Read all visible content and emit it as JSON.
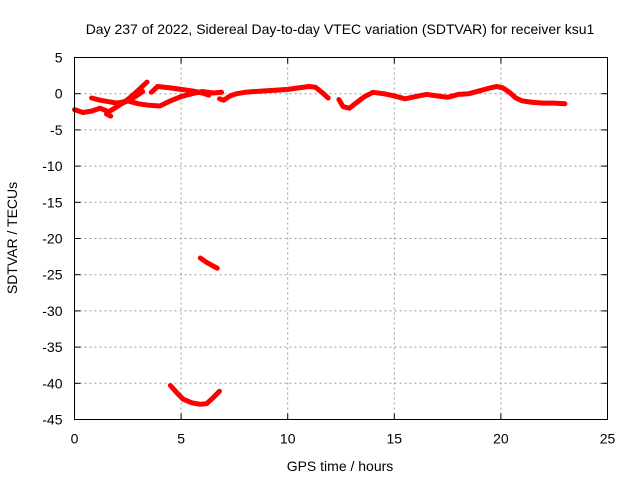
{
  "chart_data": {
    "type": "scatter",
    "title": "Day 237 of 2022, Sidereal Day-to-day VTEC variation (SDTVAR) for receiver ksu1",
    "xlabel": "GPS time / hours",
    "ylabel": "SDTVAR / TECUs",
    "xlim": [
      0,
      25
    ],
    "ylim": [
      -45,
      5
    ],
    "x_ticks": [
      "0",
      "5",
      "10",
      "15",
      "20",
      "25"
    ],
    "y_ticks": [
      "5",
      "0",
      "-5",
      "-10",
      "-15",
      "-20",
      "-25",
      "-30",
      "-35",
      "-40",
      "-45"
    ],
    "x_tick_values": [
      0,
      5,
      10,
      15,
      20,
      25
    ],
    "y_tick_values": [
      5,
      0,
      -5,
      -10,
      -15,
      -20,
      -25,
      -30,
      -35,
      -40,
      -45
    ],
    "grid": true,
    "series_color": "#ff0000",
    "series": [
      {
        "name": "SDTVAR",
        "segments": [
          [
            [
              0,
              -2.2
            ],
            [
              0.4,
              -2.6
            ],
            [
              0.8,
              -2.4
            ],
            [
              1.2,
              -2.0
            ],
            [
              1.6,
              -2.5
            ],
            [
              2.0,
              -1.8
            ],
            [
              2.5,
              -0.8
            ],
            [
              3.0,
              0.5
            ],
            [
              3.4,
              1.6
            ]
          ],
          [
            [
              0.8,
              -0.6
            ],
            [
              1.2,
              -0.9
            ],
            [
              1.6,
              -1.1
            ],
            [
              2.0,
              -1.3
            ],
            [
              2.5,
              -1.0
            ],
            [
              3.0,
              -1.4
            ],
            [
              3.5,
              -1.6
            ],
            [
              4.0,
              -1.7
            ],
            [
              4.5,
              -1.0
            ],
            [
              5.0,
              -0.4
            ],
            [
              5.5,
              0.0
            ],
            [
              6.0,
              0.3
            ],
            [
              6.5,
              0.1
            ],
            [
              6.9,
              0.2
            ]
          ],
          [
            [
              1.5,
              -2.8
            ],
            [
              1.7,
              -3.1
            ]
          ],
          [
            [
              2.1,
              -1.5
            ],
            [
              2.4,
              -1.1
            ],
            [
              2.8,
              -0.5
            ],
            [
              3.2,
              0.3
            ]
          ],
          [
            [
              3.6,
              0.2
            ],
            [
              3.9,
              1.0
            ],
            [
              4.5,
              0.8
            ],
            [
              5.0,
              0.6
            ],
            [
              5.5,
              0.4
            ],
            [
              6.0,
              0.1
            ],
            [
              6.3,
              -0.2
            ]
          ],
          [
            [
              6.8,
              -0.7
            ],
            [
              7.0,
              -0.9
            ],
            [
              7.3,
              -0.3
            ],
            [
              7.6,
              0.0
            ],
            [
              8.0,
              0.2
            ],
            [
              8.5,
              0.3
            ],
            [
              9.0,
              0.4
            ],
            [
              9.5,
              0.5
            ],
            [
              10.0,
              0.6
            ],
            [
              10.5,
              0.8
            ],
            [
              11.0,
              1.0
            ],
            [
              11.3,
              0.9
            ],
            [
              11.6,
              0.2
            ],
            [
              11.9,
              -0.6
            ]
          ],
          [
            [
              12.4,
              -0.8
            ],
            [
              12.6,
              -1.8
            ],
            [
              12.9,
              -2.0
            ],
            [
              13.2,
              -1.3
            ],
            [
              13.6,
              -0.4
            ],
            [
              14.0,
              0.2
            ],
            [
              14.5,
              0.0
            ],
            [
              15.0,
              -0.3
            ],
            [
              15.5,
              -0.7
            ],
            [
              16.0,
              -0.4
            ],
            [
              16.5,
              -0.1
            ],
            [
              17.0,
              -0.3
            ],
            [
              17.5,
              -0.5
            ],
            [
              18.0,
              -0.1
            ],
            [
              18.5,
              0.0
            ],
            [
              19.0,
              0.4
            ],
            [
              19.5,
              0.8
            ],
            [
              19.8,
              1.0
            ],
            [
              20.1,
              0.8
            ],
            [
              20.4,
              0.2
            ],
            [
              20.7,
              -0.6
            ],
            [
              21.0,
              -1.0
            ],
            [
              21.5,
              -1.2
            ],
            [
              22.0,
              -1.3
            ],
            [
              22.5,
              -1.3
            ],
            [
              23.0,
              -1.4
            ]
          ],
          [
            [
              5.9,
              -22.7
            ],
            [
              6.2,
              -23.3
            ],
            [
              6.5,
              -23.8
            ],
            [
              6.7,
              -24.1
            ]
          ],
          [
            [
              4.5,
              -40.3
            ],
            [
              4.8,
              -41.3
            ],
            [
              5.1,
              -42.2
            ],
            [
              5.5,
              -42.7
            ],
            [
              5.9,
              -42.9
            ],
            [
              6.2,
              -42.8
            ],
            [
              6.5,
              -42.0
            ],
            [
              6.8,
              -41.1
            ]
          ]
        ]
      }
    ]
  }
}
